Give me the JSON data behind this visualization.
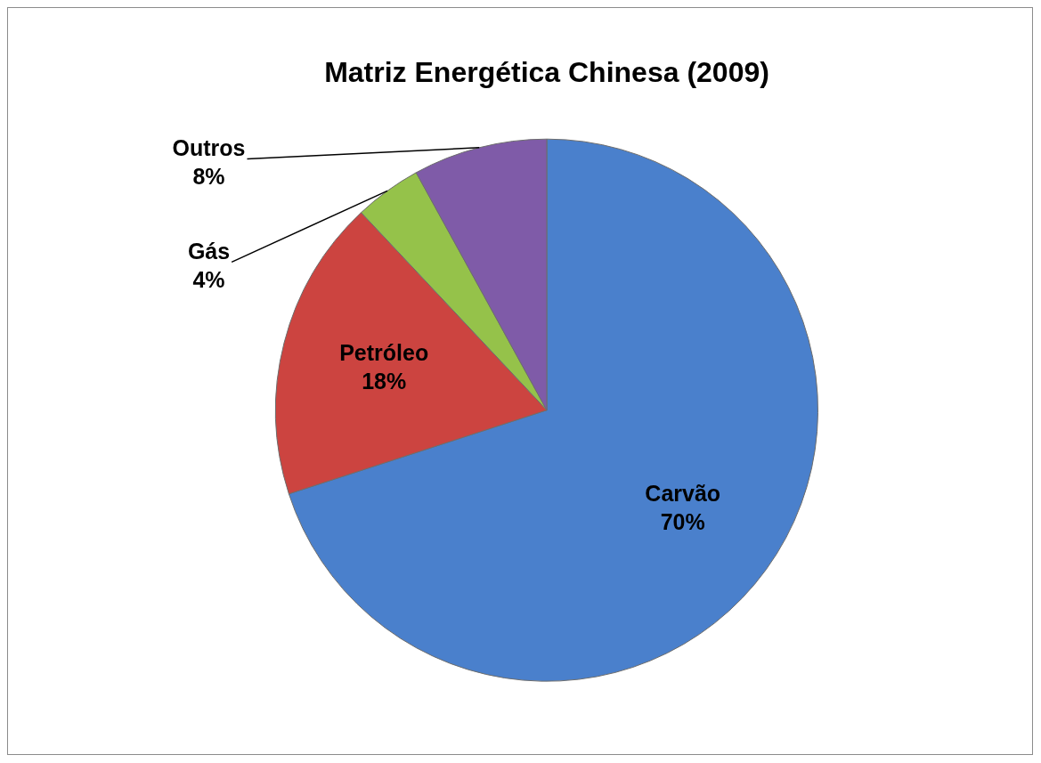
{
  "chart_data": {
    "type": "pie",
    "title": "Matriz Energética Chinesa (2009)",
    "categories": [
      "Carvão",
      "Petróleo",
      "Gás",
      "Outros"
    ],
    "values": [
      70,
      18,
      4,
      8
    ],
    "colors": [
      "#4a80cc",
      "#cc4440",
      "#95c24a",
      "#7f5ba8"
    ],
    "value_labels": [
      "70%",
      "18%",
      "4%",
      "8%"
    ],
    "legend": false
  }
}
